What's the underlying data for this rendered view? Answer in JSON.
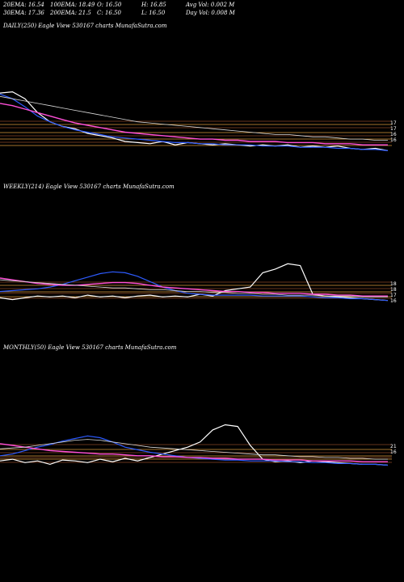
{
  "header": {
    "ema20": "20EMA: 16.54",
    "ema100": "100EMA: 18.49",
    "open": "O: 16.50",
    "high": "H: 16.85",
    "avg_vol": "Avg Vol: 0.002  M",
    "ema30": "30EMA: 17.36",
    "ema200": "200EMA: 21.5",
    "close": "C: 16.50",
    "low": "L: 16.50",
    "day_vol": "Day Vol: 0.008 M"
  },
  "colors": {
    "background": "#000000",
    "price": "#ffffff",
    "ema_fast": "#2d5bff",
    "ema_mid": "#ff4fd8",
    "ema_slow": "#d9d9d9",
    "support_lines": "#a0522d",
    "support_lines_alt": "#ffb347"
  },
  "chart_data": [
    {
      "type": "line",
      "title": "DAILY(250) Eagle  View  530167 charts MunafaSutra.com",
      "tick_labels": [
        "17",
        "17",
        "16",
        "16"
      ],
      "series": [
        {
          "values": [
            21.5,
            21.6,
            21.0,
            19.8,
            19.0,
            18.6,
            18.4,
            18.0,
            17.8,
            17.6,
            17.3,
            17.2,
            17.1,
            17.3,
            17.0,
            17.2,
            17.1,
            17.0,
            17.1,
            17.0,
            16.9,
            17.0,
            16.9,
            17.0,
            16.8,
            16.9,
            16.8,
            16.9,
            16.7,
            16.6,
            16.7,
            16.5
          ]
        },
        {
          "values": [
            21.4,
            21.0,
            20.3,
            19.5,
            19.0,
            18.6,
            18.3,
            18.1,
            17.9,
            17.7,
            17.6,
            17.5,
            17.4,
            17.3,
            17.2,
            17.2,
            17.1,
            17.1,
            17.0,
            17.0,
            17.0,
            16.9,
            16.9,
            16.9,
            16.8,
            16.8,
            16.8,
            16.7,
            16.7,
            16.6,
            16.6,
            16.5
          ]
        },
        {
          "values": [
            20.6,
            20.4,
            20.1,
            19.8,
            19.5,
            19.2,
            18.9,
            18.7,
            18.5,
            18.3,
            18.1,
            18.0,
            17.9,
            17.8,
            17.7,
            17.6,
            17.5,
            17.5,
            17.4,
            17.4,
            17.3,
            17.3,
            17.3,
            17.2,
            17.2,
            17.2,
            17.1,
            17.1,
            17.1,
            17.0,
            17.0,
            17.0
          ]
        },
        {
          "values": [
            21.2,
            21.0,
            20.8,
            20.6,
            20.4,
            20.2,
            20.0,
            19.8,
            19.6,
            19.4,
            19.2,
            19.0,
            18.9,
            18.8,
            18.7,
            18.6,
            18.5,
            18.4,
            18.3,
            18.2,
            18.1,
            18.0,
            17.9,
            17.9,
            17.8,
            17.7,
            17.7,
            17.6,
            17.5,
            17.5,
            17.4,
            17.4
          ]
        }
      ]
    },
    {
      "type": "line",
      "title": "WEEKLY(214) Eagle  View  530167 charts MunafaSutra.com",
      "tick_labels": [
        "18",
        "18",
        "17",
        "16"
      ],
      "series": [
        {
          "values": [
            16.8,
            16.6,
            16.8,
            17.0,
            16.9,
            17.0,
            16.8,
            17.1,
            16.9,
            17.0,
            16.8,
            17.0,
            17.1,
            16.9,
            17.0,
            16.9,
            17.2,
            17.0,
            17.6,
            17.8,
            18.0,
            19.6,
            20.0,
            20.6,
            20.4,
            17.2,
            17.0,
            16.9,
            16.8,
            16.7,
            16.6,
            16.5
          ]
        },
        {
          "values": [
            17.5,
            17.6,
            17.7,
            17.8,
            18.0,
            18.3,
            18.7,
            19.1,
            19.5,
            19.7,
            19.6,
            19.2,
            18.6,
            18.0,
            17.6,
            17.3,
            17.2,
            17.1,
            17.1,
            17.1,
            17.1,
            17.0,
            17.0,
            17.0,
            17.0,
            16.9,
            16.8,
            16.8,
            16.7,
            16.7,
            16.6,
            16.5
          ]
        },
        {
          "values": [
            19.0,
            18.8,
            18.6,
            18.4,
            18.3,
            18.2,
            18.2,
            18.3,
            18.4,
            18.5,
            18.5,
            18.4,
            18.2,
            18.0,
            17.9,
            17.8,
            17.7,
            17.6,
            17.5,
            17.5,
            17.4,
            17.4,
            17.3,
            17.3,
            17.3,
            17.2,
            17.2,
            17.1,
            17.1,
            17.0,
            17.0,
            17.0
          ]
        },
        {
          "values": [
            18.8,
            18.7,
            18.6,
            18.5,
            18.4,
            18.3,
            18.2,
            18.1,
            18.0,
            17.9,
            17.9,
            17.8,
            17.7,
            17.7,
            17.6,
            17.5,
            17.5,
            17.4,
            17.4,
            17.3,
            17.3,
            17.2,
            17.2,
            17.1,
            17.1,
            17.1,
            17.0,
            17.0,
            17.0,
            16.9,
            16.9,
            16.9
          ]
        }
      ]
    },
    {
      "type": "line",
      "title": "MONTHLY(50) Eagle  View  530167 charts MunafaSutra.com",
      "tick_labels": [
        "21",
        "16"
      ],
      "series": [
        {
          "values": [
            17.0,
            17.2,
            16.8,
            17.0,
            16.6,
            17.1,
            17.0,
            16.8,
            17.2,
            16.9,
            17.3,
            17.0,
            17.4,
            17.8,
            18.2,
            18.6,
            19.2,
            20.6,
            21.2,
            21.0,
            18.8,
            17.2,
            16.9,
            17.0,
            16.8,
            17.0,
            16.9,
            16.8,
            16.7,
            16.6,
            16.6,
            16.5
          ]
        },
        {
          "values": [
            17.6,
            17.8,
            18.2,
            18.6,
            18.9,
            19.3,
            19.6,
            19.9,
            19.7,
            19.2,
            18.6,
            18.3,
            18.0,
            17.8,
            17.6,
            17.4,
            17.3,
            17.2,
            17.1,
            17.1,
            17.0,
            17.0,
            17.0,
            16.9,
            16.9,
            16.8,
            16.8,
            16.7,
            16.7,
            16.6,
            16.6,
            16.5
          ]
        },
        {
          "values": [
            19.0,
            18.8,
            18.6,
            18.4,
            18.2,
            18.1,
            18.0,
            17.9,
            17.8,
            17.8,
            17.7,
            17.6,
            17.6,
            17.5,
            17.5,
            17.4,
            17.4,
            17.3,
            17.3,
            17.2,
            17.2,
            17.2,
            17.1,
            17.1,
            17.1,
            17.0,
            17.0,
            17.0,
            17.0,
            16.9,
            16.9,
            16.9
          ]
        },
        {
          "values": [
            18.4,
            18.5,
            18.6,
            18.8,
            19.0,
            19.2,
            19.4,
            19.5,
            19.4,
            19.2,
            19.0,
            18.8,
            18.6,
            18.5,
            18.4,
            18.3,
            18.2,
            18.1,
            18.0,
            17.9,
            17.8,
            17.7,
            17.7,
            17.6,
            17.5,
            17.5,
            17.4,
            17.4,
            17.3,
            17.3,
            17.2,
            17.2
          ]
        }
      ]
    }
  ]
}
